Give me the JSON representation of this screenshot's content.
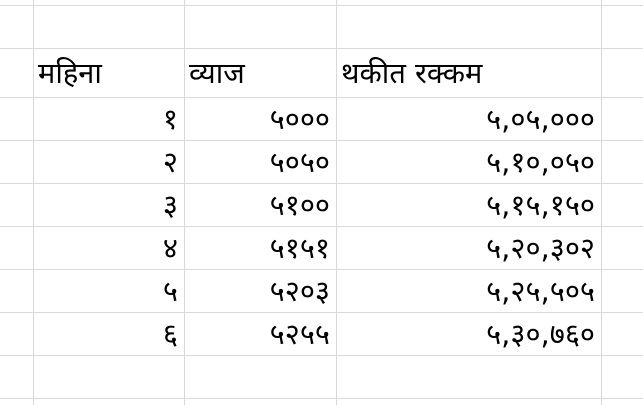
{
  "sheet": {
    "headers": {
      "month": "महिना",
      "interest": "व्याज",
      "balance": "थकीत रक्कम"
    },
    "rows": [
      {
        "month": "१",
        "interest": "५०००",
        "balance": "५,०५,०००"
      },
      {
        "month": "२",
        "interest": "५०५०",
        "balance": "५,१०,०५०"
      },
      {
        "month": "३",
        "interest": "५१००",
        "balance": "५,१५,१५०"
      },
      {
        "month": "४",
        "interest": "५१५१",
        "balance": "५,२०,३०२"
      },
      {
        "month": "५",
        "interest": "५२०३",
        "balance": "५,२५,५०५"
      },
      {
        "month": "६",
        "interest": "५२५५",
        "balance": "५,३०,७६०"
      }
    ]
  },
  "colors": {
    "gridline": "#d9d9d9",
    "text": "#000000",
    "background": "#ffffff"
  }
}
